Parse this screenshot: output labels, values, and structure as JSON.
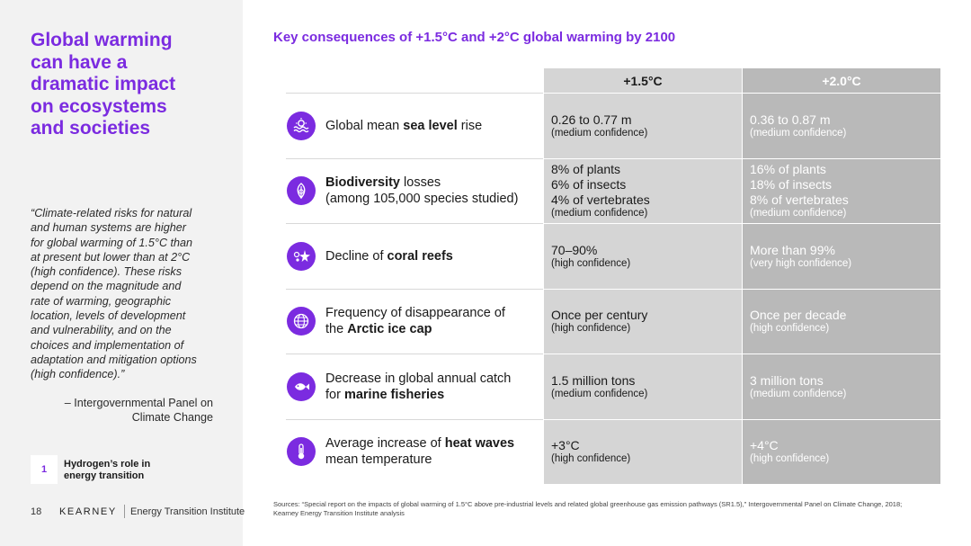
{
  "headline": [
    "Global warming",
    "can have a",
    "dramatic impact",
    "on ecosystems",
    "and societies"
  ],
  "quote": [
    "“Climate-related risks for natural",
    "and human systems are higher",
    "for global warming of 1.5°C than",
    "at present but lower than at 2°C",
    "(high confidence). These risks",
    "depend on the magnitude and",
    "rate of warming, geographic",
    "location, levels of development",
    "and vulnerability, and on the",
    "choices and implementation of",
    "adaptation and mitigation options",
    "(high confidence).”"
  ],
  "attribution": [
    "– Intergovernmental Panel on",
    "Climate Change"
  ],
  "chapter": {
    "number": "1",
    "label": [
      "Hydrogen’s role in",
      "energy transition"
    ]
  },
  "footer": {
    "page": "18",
    "brand": "KEARNEY",
    "sub": "Energy Transition Institute"
  },
  "title": "Key consequences of +1.5°C and +2°C global warming by 2100",
  "columns": [
    "+1.5°C",
    "+2.0°C"
  ],
  "rows": [
    {
      "icon": "sea-level-icon",
      "label_pre": "Global mean ",
      "label_bold": "sea level",
      "label_post": " rise",
      "label_line2": "",
      "v15": [
        "0.26 to 0.77 m"
      ],
      "c15": "(medium confidence)",
      "v20": [
        "0.36 to 0.87 m"
      ],
      "c20": "(medium confidence)"
    },
    {
      "icon": "biodiversity-icon",
      "label_pre": "",
      "label_bold": "Biodiversity",
      "label_post": " losses",
      "label_line2": "(among 105,000 species studied)",
      "v15": [
        "8% of plants",
        "6% of insects",
        "4% of vertebrates"
      ],
      "c15": "(medium confidence)",
      "v20": [
        "16% of plants",
        "18% of insects",
        "8% of vertebrates"
      ],
      "c20": "(medium confidence)"
    },
    {
      "icon": "coral-reef-icon",
      "label_pre": "Decline of ",
      "label_bold": "coral reefs",
      "label_post": "",
      "label_line2": "",
      "v15": [
        "70–90%"
      ],
      "c15": "(high confidence)",
      "v20": [
        "More than 99%"
      ],
      "c20": "(very high confidence)"
    },
    {
      "icon": "globe-icon",
      "label_pre": "Frequency of disappearance of",
      "label_bold": "",
      "label_post": "",
      "label_line2_pre": "the ",
      "label_line2_bold": "Arctic ice cap",
      "v15": [
        "Once per century"
      ],
      "c15": "(high confidence)",
      "v20": [
        "Once per decade"
      ],
      "c20": "(high confidence)"
    },
    {
      "icon": "fish-icon",
      "label_pre": "Decrease in global annual catch",
      "label_bold": "",
      "label_post": "",
      "label_line2_pre": "for ",
      "label_line2_bold": "marine fisheries",
      "v15": [
        "1.5 million tons"
      ],
      "c15": "(medium confidence)",
      "v20": [
        "3 million tons"
      ],
      "c20": "(medium confidence)"
    },
    {
      "icon": "thermometer-icon",
      "label_pre": "Average increase of ",
      "label_bold": "heat waves",
      "label_post": "",
      "label_line2": "mean temperature",
      "v15": [
        "+3°C"
      ],
      "c15": "(high confidence)",
      "v20": [
        "+4°C"
      ],
      "c20": "(high confidence)"
    }
  ],
  "sources": [
    "Sources: “Special report on the impacts of global warming of 1.5°C above pre-industrial levels and related global greenhouse gas emission pathways (SR1.5),” Intergovernmental Panel on Climate Change, 2018;",
    "Kearney Energy Transition Institute analysis"
  ],
  "colors": {
    "accent": "#7b2be0",
    "col15": "#d5d5d5",
    "col20": "#b9b9b9"
  }
}
